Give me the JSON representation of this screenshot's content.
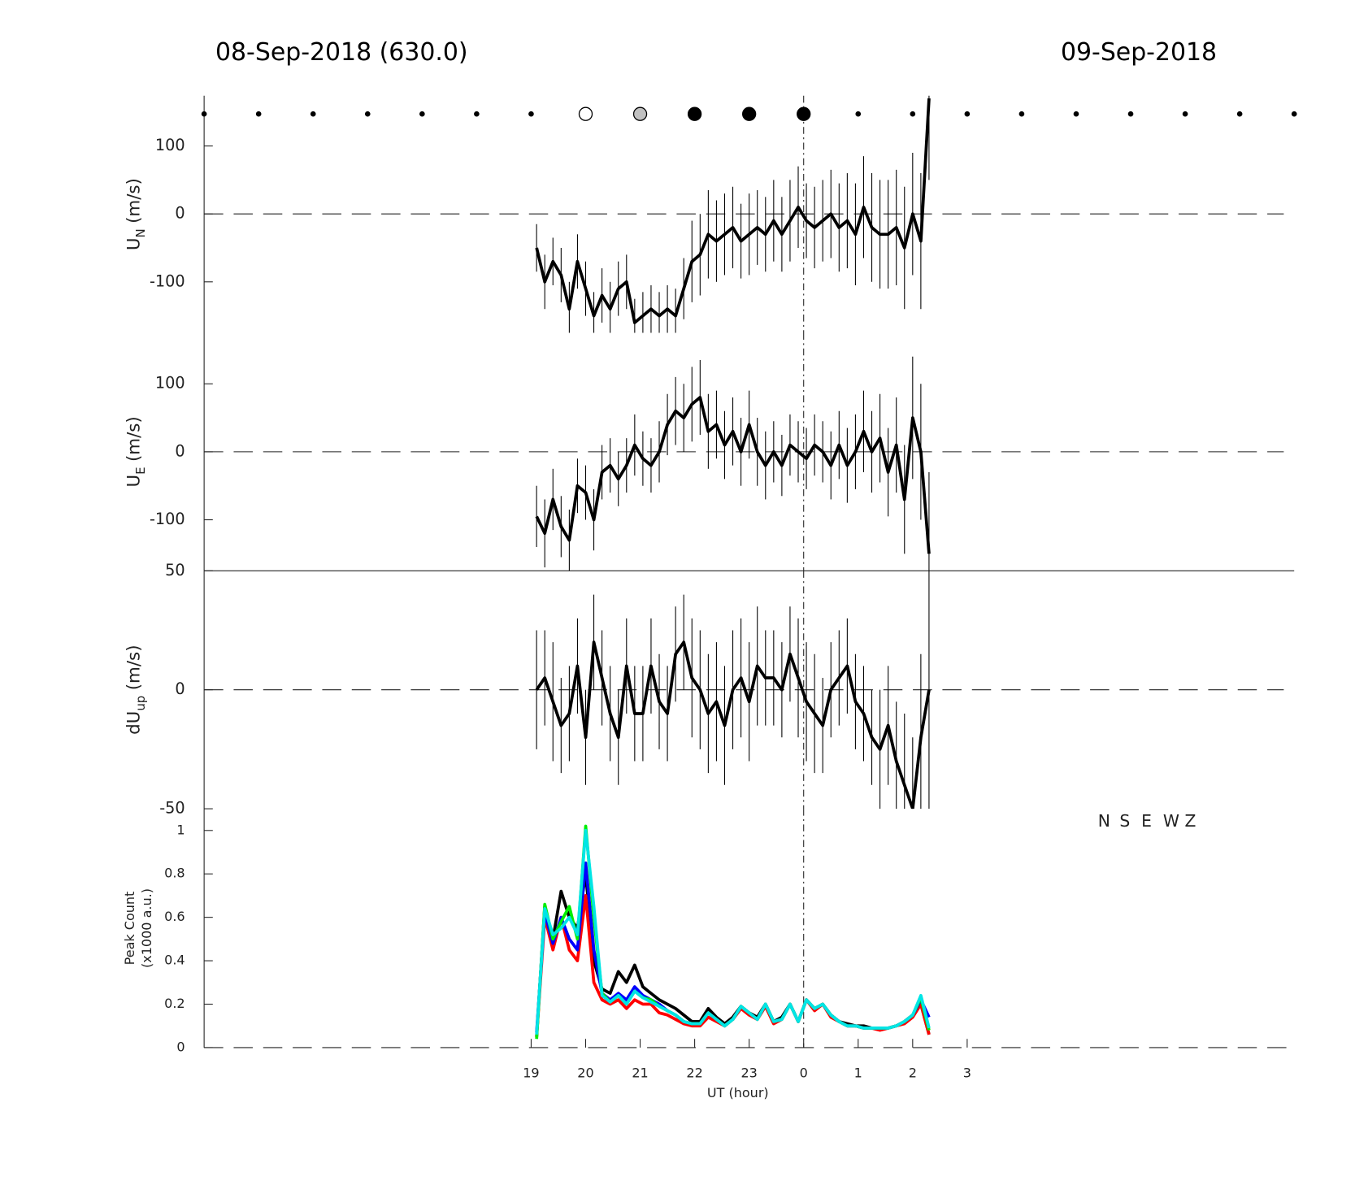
{
  "chart_data": [
    {
      "type": "errorbar",
      "title": "08-Sep-2018 (630.0)",
      "title_right": "09-Sep-2018",
      "ylabel": {
        "main": "U",
        "sub": "N",
        "unit": "(m/s)"
      },
      "xlim": [
        13,
        33
      ],
      "ylim": [
        -175,
        174
      ],
      "yticks": [
        -100,
        0,
        100
      ],
      "reference_line": 0,
      "vline": 24,
      "markers": {
        "x": [
          13,
          14,
          15,
          16,
          17,
          18,
          19,
          20,
          21,
          22,
          23,
          24,
          25,
          26,
          27,
          28,
          29,
          30,
          31,
          32,
          33
        ],
        "size": [
          2.5,
          2.5,
          2.5,
          2.5,
          2.5,
          2.5,
          2.5,
          7.5,
          7.5,
          7.5,
          7.5,
          7.5,
          2.5,
          2.5,
          2.5,
          2.5,
          2.5,
          2.5,
          2.5,
          2.5,
          2.5
        ],
        "fill": [
          "#000",
          "#000",
          "#000",
          "#000",
          "#000",
          "#000",
          "#000",
          "#fff",
          "#c0c0c0",
          "#000",
          "#000",
          "#000",
          "#000",
          "#000",
          "#000",
          "#000",
          "#000",
          "#000",
          "#000",
          "#000",
          "#000"
        ]
      },
      "x": [
        19.1,
        19.25,
        19.4,
        19.55,
        19.7,
        19.85,
        20,
        20.15,
        20.3,
        20.45,
        20.6,
        20.75,
        20.9,
        21.05,
        21.2,
        21.35,
        21.5,
        21.65,
        21.8,
        21.95,
        22.1,
        22.25,
        22.4,
        22.55,
        22.7,
        22.85,
        23,
        23.15,
        23.3,
        23.45,
        23.6,
        23.75,
        23.9,
        24.05,
        24.2,
        24.35,
        24.5,
        24.65,
        24.8,
        24.95,
        25.1,
        25.25,
        25.4,
        25.55,
        25.7,
        25.85,
        26,
        26.15,
        26.3
      ],
      "series": [
        {
          "color": "#000",
          "values": [
            -50,
            -100,
            -70,
            -90,
            -140,
            -70,
            -110,
            -150,
            -120,
            -140,
            -110,
            -100,
            -160,
            -150,
            -140,
            -150,
            -140,
            -150,
            -110,
            -70,
            -60,
            -30,
            -40,
            -30,
            -20,
            -40,
            -30,
            -20,
            -30,
            -10,
            -30,
            -10,
            10,
            -10,
            -20,
            -10,
            0,
            -20,
            -10,
            -30,
            10,
            -20,
            -30,
            -30,
            -20,
            -50,
            0,
            -40,
            170
          ],
          "errors": [
            35,
            40,
            35,
            40,
            40,
            40,
            40,
            35,
            40,
            40,
            40,
            40,
            35,
            35,
            35,
            35,
            35,
            40,
            45,
            60,
            60,
            65,
            60,
            60,
            60,
            55,
            60,
            55,
            55,
            60,
            55,
            60,
            60,
            55,
            60,
            60,
            65,
            65,
            70,
            75,
            75,
            80,
            80,
            80,
            85,
            90,
            90,
            100,
            120
          ]
        }
      ]
    },
    {
      "type": "errorbar",
      "ylabel": {
        "main": "U",
        "sub": "E",
        "unit": "(m/s)"
      },
      "xlim": [
        13,
        33
      ],
      "ylim": [
        -175,
        175
      ],
      "yticks": [
        -100,
        0,
        100
      ],
      "reference_line": 0,
      "vline": 24,
      "x": [
        19.1,
        19.25,
        19.4,
        19.55,
        19.7,
        19.85,
        20,
        20.15,
        20.3,
        20.45,
        20.6,
        20.75,
        20.9,
        21.05,
        21.2,
        21.35,
        21.5,
        21.65,
        21.8,
        21.95,
        22.1,
        22.25,
        22.4,
        22.55,
        22.7,
        22.85,
        23,
        23.15,
        23.3,
        23.45,
        23.6,
        23.75,
        23.9,
        24.05,
        24.2,
        24.35,
        24.5,
        24.65,
        24.8,
        24.95,
        25.1,
        25.25,
        25.4,
        25.55,
        25.7,
        25.85,
        26,
        26.15,
        26.3
      ],
      "series": [
        {
          "color": "#000",
          "values": [
            -95,
            -120,
            -70,
            -110,
            -130,
            -50,
            -60,
            -100,
            -30,
            -20,
            -40,
            -20,
            10,
            -10,
            -20,
            0,
            40,
            60,
            50,
            70,
            80,
            30,
            40,
            10,
            30,
            0,
            40,
            0,
            -20,
            0,
            -20,
            10,
            0,
            -10,
            10,
            0,
            -20,
            10,
            -20,
            0,
            30,
            0,
            20,
            -30,
            10,
            -70,
            50,
            0,
            -150
          ],
          "errors": [
            45,
            50,
            45,
            45,
            45,
            40,
            40,
            45,
            40,
            40,
            40,
            40,
            45,
            40,
            40,
            45,
            45,
            50,
            50,
            55,
            55,
            55,
            50,
            50,
            50,
            50,
            50,
            50,
            50,
            45,
            45,
            45,
            45,
            45,
            45,
            45,
            50,
            50,
            55,
            55,
            60,
            60,
            65,
            65,
            70,
            80,
            90,
            100,
            120
          ]
        }
      ]
    },
    {
      "type": "errorbar",
      "ylabel": {
        "main": "dU",
        "sub": "up",
        "unit": "(m/s)"
      },
      "xlim": [
        13,
        33
      ],
      "ylim": [
        -50,
        50
      ],
      "yticks": [
        -50,
        0,
        50
      ],
      "reference_line": 0,
      "vline": 24,
      "x": [
        19.1,
        19.25,
        19.4,
        19.55,
        19.7,
        19.85,
        20,
        20.15,
        20.3,
        20.45,
        20.6,
        20.75,
        20.9,
        21.05,
        21.2,
        21.35,
        21.5,
        21.65,
        21.8,
        21.95,
        22.1,
        22.25,
        22.4,
        22.55,
        22.7,
        22.85,
        23,
        23.15,
        23.3,
        23.45,
        23.6,
        23.75,
        23.9,
        24.05,
        24.2,
        24.35,
        24.5,
        24.65,
        24.8,
        24.95,
        25.1,
        25.25,
        25.4,
        25.55,
        25.7,
        25.85,
        26,
        26.15,
        26.3
      ],
      "series": [
        {
          "color": "#000",
          "values": [
            0,
            5,
            -5,
            -15,
            -10,
            10,
            -20,
            20,
            5,
            -10,
            -20,
            10,
            -10,
            -10,
            10,
            -5,
            -10,
            15,
            20,
            5,
            0,
            -10,
            -5,
            -15,
            0,
            5,
            -5,
            10,
            5,
            5,
            0,
            15,
            5,
            -5,
            -10,
            -15,
            0,
            5,
            10,
            -5,
            -10,
            -20,
            -25,
            -15,
            -30,
            -40,
            -50,
            -20,
            0
          ],
          "errors": [
            25,
            20,
            25,
            20,
            20,
            20,
            20,
            20,
            20,
            20,
            20,
            20,
            20,
            20,
            20,
            20,
            20,
            20,
            20,
            25,
            25,
            25,
            25,
            25,
            25,
            25,
            25,
            25,
            20,
            20,
            20,
            20,
            25,
            25,
            25,
            20,
            20,
            20,
            20,
            20,
            20,
            20,
            25,
            25,
            25,
            30,
            30,
            35,
            50
          ]
        }
      ]
    },
    {
      "type": "line",
      "ylabel": [
        "Peak Count",
        "(x1000 a.u.)"
      ],
      "xlabel": "UT (hour)",
      "xlim": [
        13,
        33
      ],
      "ylim": [
        0,
        1.1
      ],
      "yticks": [
        0,
        0.2,
        0.4,
        0.6,
        0.8,
        1
      ],
      "reference_line": 0,
      "vline": 24,
      "xticks": [
        19,
        20,
        21,
        22,
        23,
        {
          "value": 24,
          "label": "0"
        },
        {
          "value": 25,
          "label": "1"
        },
        {
          "value": 26,
          "label": "2"
        },
        {
          "value": 27,
          "label": "3"
        }
      ],
      "x": [
        19.1,
        19.25,
        19.4,
        19.55,
        19.7,
        19.85,
        20,
        20.15,
        20.3,
        20.45,
        20.6,
        20.75,
        20.9,
        21.05,
        21.2,
        21.35,
        21.5,
        21.65,
        21.8,
        21.95,
        22.1,
        22.25,
        22.4,
        22.55,
        22.7,
        22.85,
        23,
        23.15,
        23.3,
        23.45,
        23.6,
        23.75,
        23.9,
        24.05,
        24.2,
        24.35,
        24.5,
        24.65,
        24.8,
        24.95,
        25.1,
        25.25,
        25.4,
        25.55,
        25.7,
        25.85,
        26,
        26.15,
        26.3
      ],
      "series": [
        {
          "name": "N",
          "color": "#000000",
          "values": [
            0.05,
            0.65,
            0.5,
            0.72,
            0.6,
            0.55,
            0.8,
            0.4,
            0.27,
            0.25,
            0.35,
            0.3,
            0.38,
            0.28,
            0.25,
            0.22,
            0.2,
            0.18,
            0.15,
            0.12,
            0.12,
            0.18,
            0.14,
            0.11,
            0.14,
            0.19,
            0.16,
            0.14,
            0.2,
            0.12,
            0.14,
            0.2,
            0.12,
            0.22,
            0.18,
            0.2,
            0.15,
            0.12,
            0.11,
            0.1,
            0.1,
            0.09,
            0.09,
            0.09,
            0.1,
            0.12,
            0.15,
            0.2,
            0.06
          ]
        },
        {
          "name": "S",
          "color": "#ff0000",
          "values": [
            0.05,
            0.6,
            0.45,
            0.6,
            0.45,
            0.4,
            0.7,
            0.3,
            0.22,
            0.2,
            0.22,
            0.18,
            0.22,
            0.2,
            0.2,
            0.16,
            0.15,
            0.13,
            0.11,
            0.1,
            0.1,
            0.14,
            0.12,
            0.1,
            0.13,
            0.18,
            0.15,
            0.13,
            0.19,
            0.11,
            0.13,
            0.2,
            0.12,
            0.22,
            0.17,
            0.2,
            0.14,
            0.12,
            0.1,
            0.1,
            0.09,
            0.09,
            0.08,
            0.09,
            0.1,
            0.11,
            0.14,
            0.2,
            0.06
          ]
        },
        {
          "name": "E",
          "color": "#0000ff",
          "values": [
            0.07,
            0.62,
            0.48,
            0.6,
            0.5,
            0.45,
            0.85,
            0.45,
            0.25,
            0.22,
            0.25,
            0.22,
            0.28,
            0.24,
            0.22,
            0.2,
            0.17,
            0.15,
            0.12,
            0.11,
            0.11,
            0.16,
            0.13,
            0.1,
            0.13,
            0.19,
            0.16,
            0.13,
            0.2,
            0.12,
            0.13,
            0.2,
            0.12,
            0.22,
            0.18,
            0.2,
            0.15,
            0.12,
            0.1,
            0.1,
            0.09,
            0.09,
            0.09,
            0.09,
            0.1,
            0.12,
            0.15,
            0.22,
            0.14
          ]
        },
        {
          "name": "W",
          "color": "#00ee00",
          "values": [
            0.04,
            0.66,
            0.5,
            0.58,
            0.65,
            0.5,
            1.02,
            0.6,
            0.25,
            0.21,
            0.24,
            0.2,
            0.26,
            0.23,
            0.22,
            0.19,
            0.17,
            0.15,
            0.12,
            0.11,
            0.11,
            0.16,
            0.13,
            0.1,
            0.13,
            0.19,
            0.16,
            0.13,
            0.2,
            0.12,
            0.13,
            0.2,
            0.12,
            0.22,
            0.18,
            0.2,
            0.15,
            0.12,
            0.1,
            0.1,
            0.09,
            0.09,
            0.09,
            0.09,
            0.1,
            0.12,
            0.15,
            0.23,
            0.08
          ]
        },
        {
          "name": "Z",
          "color": "#00e5e5",
          "values": [
            0.06,
            0.64,
            0.52,
            0.55,
            0.6,
            0.52,
            1.0,
            0.65,
            0.24,
            0.21,
            0.24,
            0.2,
            0.26,
            0.23,
            0.21,
            0.19,
            0.17,
            0.15,
            0.12,
            0.11,
            0.11,
            0.16,
            0.13,
            0.1,
            0.13,
            0.19,
            0.16,
            0.13,
            0.2,
            0.12,
            0.13,
            0.2,
            0.12,
            0.22,
            0.18,
            0.2,
            0.15,
            0.12,
            0.1,
            0.1,
            0.09,
            0.09,
            0.09,
            0.09,
            0.1,
            0.12,
            0.15,
            0.24,
            0.09
          ]
        }
      ]
    }
  ]
}
